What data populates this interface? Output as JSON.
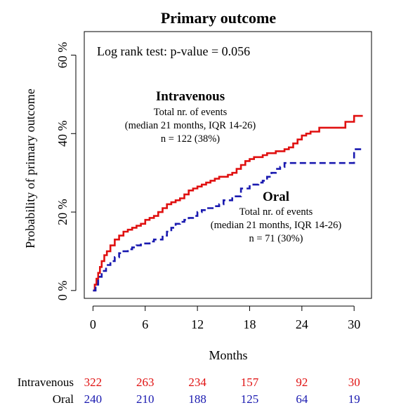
{
  "chart_data": {
    "type": "line",
    "title": "Primary outcome",
    "xlabel": "Months",
    "ylabel": "Probability of primary outcome",
    "xlim": [
      -1,
      32
    ],
    "ylim": [
      -2,
      66
    ],
    "x_ticks": [
      0,
      6,
      12,
      18,
      24,
      30
    ],
    "x_tick_labels": [
      "0",
      "6",
      "12",
      "18",
      "24",
      "30"
    ],
    "y_ticks": [
      0,
      20,
      40,
      60
    ],
    "y_tick_labels": [
      "0 %",
      "20 %",
      "40 %",
      "60 %"
    ],
    "grid": false,
    "legend": "none",
    "pvalue_text": "Log rank test: p-value = 0.056",
    "series": [
      {
        "name": "Intravenous",
        "color": "#e01010",
        "dash": "solid",
        "x": [
          0,
          0.2,
          0.4,
          0.6,
          0.8,
          1.0,
          1.3,
          1.6,
          2.0,
          2.5,
          3.0,
          3.5,
          4.0,
          4.5,
          5.0,
          5.5,
          6.0,
          6.5,
          7.0,
          7.5,
          8.0,
          8.5,
          9.0,
          9.5,
          10.0,
          10.5,
          11.0,
          11.5,
          12.0,
          12.5,
          13.0,
          13.5,
          14.0,
          14.5,
          15.0,
          15.5,
          16.0,
          16.5,
          17.0,
          17.5,
          18.0,
          18.5,
          19.0,
          19.5,
          20.0,
          20.5,
          21.0,
          21.5,
          22.0,
          22.5,
          23.0,
          23.5,
          24.0,
          24.5,
          25.0,
          26.0,
          27.0,
          28.0,
          29.0,
          29.5,
          30.0,
          31.0
        ],
        "y": [
          0,
          1.5,
          3.0,
          4.5,
          6.0,
          7.5,
          9.0,
          10.0,
          11.5,
          13.0,
          14.0,
          15.0,
          15.5,
          16.0,
          16.5,
          17.0,
          18.0,
          18.5,
          19.0,
          20.0,
          21.0,
          22.0,
          22.5,
          23.0,
          23.5,
          24.5,
          25.5,
          26.0,
          26.5,
          27.0,
          27.5,
          28.0,
          28.5,
          29.0,
          29.0,
          29.5,
          30.0,
          31.0,
          32.0,
          33.0,
          33.5,
          34.0,
          34.0,
          34.5,
          35.0,
          35.0,
          35.5,
          35.5,
          36.0,
          36.5,
          37.5,
          38.5,
          39.5,
          40.0,
          40.5,
          41.5,
          41.5,
          41.5,
          43.0,
          43.0,
          44.5,
          44.5
        ]
      },
      {
        "name": "Oral",
        "color": "#1a1ab0",
        "dash": "dashed",
        "x": [
          0,
          0.3,
          0.6,
          1.0,
          1.5,
          2.0,
          2.5,
          3.0,
          3.5,
          4.0,
          4.5,
          5.0,
          5.5,
          6.0,
          6.5,
          7.0,
          7.5,
          8.0,
          8.5,
          9.0,
          9.5,
          10.0,
          10.5,
          11.0,
          11.5,
          12.0,
          12.5,
          13.0,
          13.5,
          14.0,
          14.5,
          15.0,
          16.0,
          17.0,
          18.0,
          18.5,
          19.0,
          19.5,
          20.0,
          20.5,
          21.0,
          21.5,
          22.0,
          22.5,
          24.0,
          26.0,
          28.0,
          29.5,
          30.0,
          31.0
        ],
        "y": [
          0,
          1.5,
          3.5,
          5.0,
          6.5,
          7.5,
          8.5,
          9.5,
          10.0,
          10.5,
          11.0,
          11.5,
          12.0,
          12.0,
          12.5,
          13.0,
          13.0,
          14.0,
          15.0,
          16.0,
          17.0,
          17.5,
          18.0,
          18.5,
          19.0,
          20.0,
          20.5,
          21.0,
          21.0,
          21.5,
          22.0,
          23.0,
          24.0,
          26.0,
          27.0,
          27.0,
          27.5,
          28.0,
          29.0,
          30.0,
          31.0,
          31.5,
          32.5,
          32.5,
          32.5,
          32.5,
          32.5,
          32.5,
          36.0,
          36.0
        ]
      }
    ],
    "annotations": [
      {
        "heading": "Intravenous",
        "lines": [
          "Total nr. of events",
          "(median 21 months, IQR 14-26)",
          "n = 122 (38%)"
        ]
      },
      {
        "heading": "Oral",
        "lines": [
          "Total nr. of events",
          "(median 21 months, IQR 14-26)",
          "n = 71 (30%)"
        ]
      }
    ],
    "risk_table": [
      {
        "label": "Intravenous",
        "color": "#e01010",
        "values": [
          "322",
          "263",
          "234",
          "157",
          "92",
          "30"
        ]
      },
      {
        "label": "Oral",
        "color": "#1a1ab0",
        "values": [
          "240",
          "210",
          "188",
          "125",
          "64",
          "19"
        ]
      }
    ]
  }
}
